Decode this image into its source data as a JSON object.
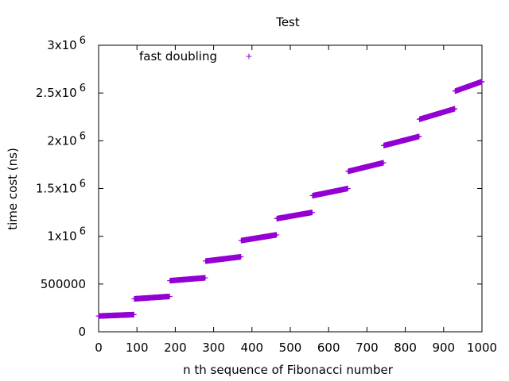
{
  "chart_data": {
    "type": "scatter",
    "title": "Test",
    "xlabel": "n th sequence of Fibonacci number",
    "ylabel": "time cost (ns)",
    "xlim": [
      0,
      1000
    ],
    "ylim": [
      0,
      3000000
    ],
    "x_ticks": [
      0,
      100,
      200,
      300,
      400,
      500,
      600,
      700,
      800,
      900,
      1000
    ],
    "x_tick_labels": [
      "0",
      "100",
      "200",
      "300",
      "400",
      "500",
      "600",
      "700",
      "800",
      "900",
      "1000"
    ],
    "y_ticks": [
      0,
      500000,
      1000000,
      1500000,
      2000000,
      2500000,
      3000000
    ],
    "y_tick_labels": [
      {
        "base": "0",
        "exp": ""
      },
      {
        "base": "500000",
        "exp": ""
      },
      {
        "base": "1x10",
        "exp": "6"
      },
      {
        "base": "1.5x10",
        "exp": "6"
      },
      {
        "base": "2x10",
        "exp": "6"
      },
      {
        "base": "2.5x10",
        "exp": "6"
      },
      {
        "base": "3x10",
        "exp": "6"
      }
    ],
    "legend_position": "top-left",
    "series": [
      {
        "name": "fast doubling",
        "marker": "+",
        "color": "#9400d3",
        "segments": [
          {
            "x_start": 0,
            "x_end": 92,
            "y_start": 165000,
            "y_end": 180000
          },
          {
            "x_start": 93,
            "x_end": 185,
            "y_start": 345000,
            "y_end": 370000
          },
          {
            "x_start": 186,
            "x_end": 278,
            "y_start": 535000,
            "y_end": 565000
          },
          {
            "x_start": 279,
            "x_end": 371,
            "y_start": 740000,
            "y_end": 785000
          },
          {
            "x_start": 372,
            "x_end": 464,
            "y_start": 955000,
            "y_end": 1015000
          },
          {
            "x_start": 465,
            "x_end": 557,
            "y_start": 1185000,
            "y_end": 1250000
          },
          {
            "x_start": 558,
            "x_end": 650,
            "y_start": 1425000,
            "y_end": 1500000
          },
          {
            "x_start": 651,
            "x_end": 743,
            "y_start": 1680000,
            "y_end": 1770000
          },
          {
            "x_start": 744,
            "x_end": 836,
            "y_start": 1950000,
            "y_end": 2045000
          },
          {
            "x_start": 837,
            "x_end": 929,
            "y_start": 2225000,
            "y_end": 2335000
          },
          {
            "x_start": 930,
            "x_end": 1000,
            "y_start": 2520000,
            "y_end": 2620000
          }
        ]
      }
    ]
  }
}
